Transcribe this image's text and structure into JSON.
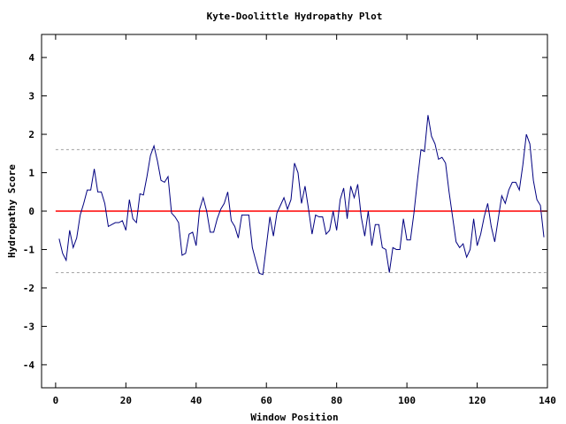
{
  "chart_data": {
    "type": "line",
    "title": "Kyte-Doolittle Hydropathy Plot",
    "xlabel": "Window Position",
    "ylabel": "Hydropathy Score",
    "xlim": [
      -4,
      140
    ],
    "ylim": [
      -4.6,
      4.6
    ],
    "xticks": [
      0,
      20,
      40,
      60,
      80,
      100,
      120,
      140
    ],
    "yticks": [
      -4,
      -3,
      -2,
      -1,
      0,
      1,
      2,
      3,
      4
    ],
    "grid": false,
    "reference_lines": [
      {
        "y": 0,
        "style": "solid",
        "color": "#ff0000"
      },
      {
        "y": 1.6,
        "style": "dashed",
        "color": "#a0a0a0"
      },
      {
        "y": -1.6,
        "style": "dashed",
        "color": "#a0a0a0"
      }
    ],
    "series": [
      {
        "color": "#000080",
        "x": [
          1,
          2,
          3,
          4,
          5,
          6,
          7,
          8,
          9,
          10,
          11,
          12,
          13,
          14,
          15,
          16,
          17,
          18,
          19,
          20,
          21,
          22,
          23,
          24,
          25,
          26,
          27,
          28,
          29,
          30,
          31,
          32,
          33,
          34,
          35,
          36,
          37,
          38,
          39,
          40,
          41,
          42,
          43,
          44,
          45,
          46,
          47,
          48,
          49,
          50,
          51,
          52,
          53,
          54,
          55,
          56,
          57,
          58,
          59,
          60,
          61,
          62,
          63,
          64,
          65,
          66,
          67,
          68,
          69,
          70,
          71,
          72,
          73,
          74,
          75,
          76,
          77,
          78,
          79,
          80,
          81,
          82,
          83,
          84,
          85,
          86,
          87,
          88,
          89,
          90,
          91,
          92,
          93,
          94,
          95,
          96,
          97,
          98,
          99,
          100,
          101,
          102,
          103,
          104,
          105,
          106,
          107,
          108,
          109,
          110,
          111,
          112,
          113,
          114,
          115,
          116,
          117,
          118,
          119,
          120,
          121,
          122,
          123,
          124,
          125,
          126,
          127,
          128,
          129,
          130,
          131,
          132,
          133,
          134,
          135,
          136,
          137,
          138,
          139
        ],
        "y": [
          -0.72,
          -1.1,
          -1.28,
          -0.5,
          -0.95,
          -0.7,
          -0.1,
          0.2,
          0.55,
          0.55,
          1.1,
          0.5,
          0.5,
          0.2,
          -0.4,
          -0.35,
          -0.3,
          -0.3,
          -0.25,
          -0.5,
          0.3,
          -0.2,
          -0.3,
          0.45,
          0.42,
          0.9,
          1.45,
          1.7,
          1.3,
          0.8,
          0.75,
          0.9,
          -0.05,
          -0.15,
          -0.3,
          -1.15,
          -1.1,
          -0.6,
          -0.55,
          -0.9,
          0.05,
          0.35,
          0.0,
          -0.55,
          -0.55,
          -0.2,
          0.05,
          0.2,
          0.5,
          -0.25,
          -0.4,
          -0.7,
          -0.1,
          -0.1,
          -0.1,
          -0.95,
          -1.3,
          -1.62,
          -1.65,
          -0.9,
          -0.15,
          -0.65,
          -0.05,
          0.15,
          0.35,
          0.05,
          0.3,
          1.25,
          1.0,
          0.2,
          0.65,
          0.05,
          -0.6,
          -0.1,
          -0.15,
          -0.15,
          -0.6,
          -0.5,
          0.0,
          -0.5,
          0.3,
          0.6,
          -0.2,
          0.65,
          0.35,
          0.7,
          -0.15,
          -0.65,
          0.0,
          -0.9,
          -0.35,
          -0.35,
          -0.95,
          -1.0,
          -1.6,
          -0.95,
          -1.0,
          -1.0,
          -0.2,
          -0.75,
          -0.75,
          -0.05,
          0.8,
          1.6,
          1.55,
          2.5,
          1.95,
          1.75,
          1.35,
          1.4,
          1.25,
          0.5,
          -0.15,
          -0.8,
          -0.95,
          -0.85,
          -1.2,
          -1.0,
          -0.2,
          -0.9,
          -0.6,
          -0.15,
          0.2,
          -0.4,
          -0.8,
          -0.2,
          0.4,
          0.2,
          0.55,
          0.75,
          0.75,
          0.55,
          1.2,
          2.0,
          1.75,
          0.8,
          0.3,
          0.15,
          -0.68
        ]
      }
    ]
  }
}
